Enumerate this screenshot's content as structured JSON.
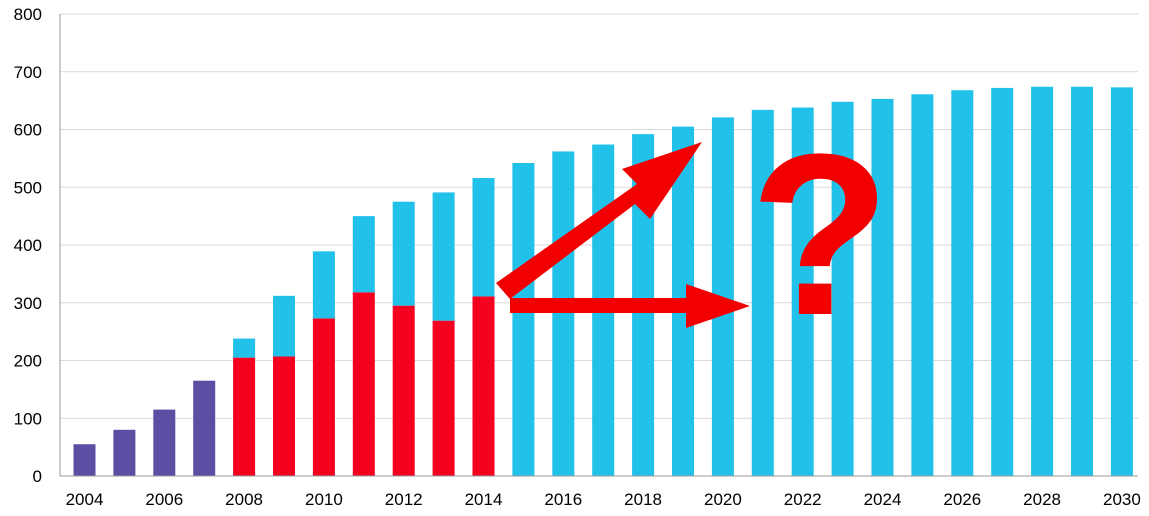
{
  "chart_data": {
    "type": "bar",
    "stacked": true,
    "title": "",
    "xlabel": "",
    "ylabel": "",
    "ylim": [
      0,
      800
    ],
    "yticks": [
      0,
      100,
      200,
      300,
      400,
      500,
      600,
      700,
      800
    ],
    "grid": true,
    "legend": "none",
    "categories": [
      "2004",
      "2005",
      "2006",
      "2007",
      "2008",
      "2009",
      "2010",
      "2011",
      "2012",
      "2013",
      "2014",
      "2015",
      "2016",
      "2017",
      "2018",
      "2019",
      "2020",
      "2021",
      "2022",
      "2023",
      "2024",
      "2025",
      "2026",
      "2027",
      "2028",
      "2029",
      "2030"
    ],
    "xtick_labels": [
      "2004",
      "2006",
      "2008",
      "2010",
      "2012",
      "2014",
      "2016",
      "2018",
      "2020",
      "2022",
      "2024",
      "2026",
      "2028",
      "2030"
    ],
    "series": [
      {
        "color": "#5B4FA3",
        "values": [
          55,
          80,
          115,
          165,
          0,
          0,
          0,
          0,
          0,
          0,
          0,
          0,
          0,
          0,
          0,
          0,
          0,
          0,
          0,
          0,
          0,
          0,
          0,
          0,
          0,
          0,
          0
        ]
      },
      {
        "color": "#F5001E",
        "values": [
          0,
          0,
          0,
          0,
          205,
          207,
          273,
          318,
          295,
          269,
          311,
          0,
          0,
          0,
          0,
          0,
          0,
          0,
          0,
          0,
          0,
          0,
          0,
          0,
          0,
          0,
          0
        ]
      },
      {
        "color": "#21C1EA",
        "values": [
          0,
          0,
          0,
          0,
          33,
          105,
          116,
          132,
          180,
          222,
          205,
          542,
          562,
          574,
          592,
          605,
          621,
          634,
          638,
          648,
          653,
          661,
          668,
          672,
          674,
          674,
          673
        ]
      }
    ],
    "annotations": {
      "arrow_color": "#F20000",
      "question_mark": "?"
    }
  }
}
